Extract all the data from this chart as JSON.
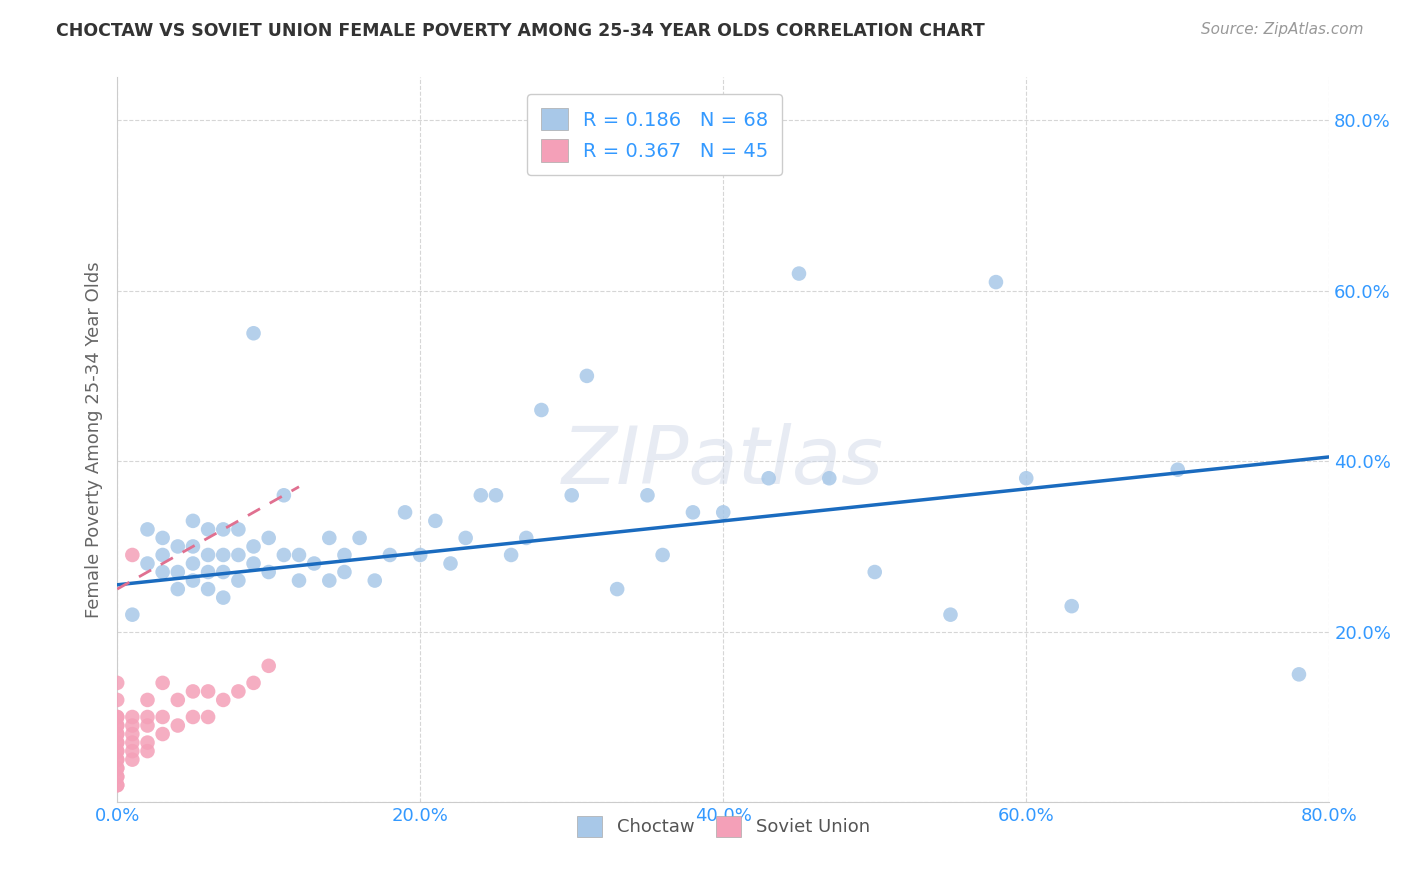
{
  "title": "CHOCTAW VS SOVIET UNION FEMALE POVERTY AMONG 25-34 YEAR OLDS CORRELATION CHART",
  "source": "Source: ZipAtlas.com",
  "xlabel_choctaw": "Choctaw",
  "xlabel_soviet": "Soviet Union",
  "ylabel": "Female Poverty Among 25-34 Year Olds",
  "choctaw_R": 0.186,
  "choctaw_N": 68,
  "soviet_R": 0.367,
  "soviet_N": 45,
  "choctaw_color": "#a8c8e8",
  "soviet_color": "#f4a0b8",
  "choctaw_line_color": "#1a6bbf",
  "soviet_line_color": "#e07090",
  "background_color": "#ffffff",
  "grid_color": "#cccccc",
  "choctaw_x": [
    0.01,
    0.02,
    0.02,
    0.03,
    0.03,
    0.03,
    0.04,
    0.04,
    0.04,
    0.05,
    0.05,
    0.05,
    0.05,
    0.06,
    0.06,
    0.06,
    0.06,
    0.07,
    0.07,
    0.07,
    0.07,
    0.08,
    0.08,
    0.08,
    0.09,
    0.09,
    0.09,
    0.1,
    0.1,
    0.11,
    0.11,
    0.12,
    0.12,
    0.13,
    0.14,
    0.14,
    0.15,
    0.15,
    0.16,
    0.17,
    0.18,
    0.19,
    0.2,
    0.21,
    0.22,
    0.23,
    0.24,
    0.25,
    0.26,
    0.27,
    0.28,
    0.3,
    0.31,
    0.33,
    0.35,
    0.36,
    0.38,
    0.4,
    0.43,
    0.45,
    0.47,
    0.5,
    0.55,
    0.58,
    0.6,
    0.63,
    0.7,
    0.78
  ],
  "choctaw_y": [
    0.22,
    0.28,
    0.32,
    0.27,
    0.29,
    0.31,
    0.25,
    0.27,
    0.3,
    0.26,
    0.28,
    0.3,
    0.33,
    0.25,
    0.27,
    0.29,
    0.32,
    0.24,
    0.27,
    0.29,
    0.32,
    0.26,
    0.29,
    0.32,
    0.28,
    0.3,
    0.55,
    0.27,
    0.31,
    0.29,
    0.36,
    0.26,
    0.29,
    0.28,
    0.26,
    0.31,
    0.27,
    0.29,
    0.31,
    0.26,
    0.29,
    0.34,
    0.29,
    0.33,
    0.28,
    0.31,
    0.36,
    0.36,
    0.29,
    0.31,
    0.46,
    0.36,
    0.5,
    0.25,
    0.36,
    0.29,
    0.34,
    0.34,
    0.38,
    0.62,
    0.38,
    0.27,
    0.22,
    0.61,
    0.38,
    0.23,
    0.39,
    0.15
  ],
  "soviet_x": [
    0.0,
    0.0,
    0.0,
    0.0,
    0.0,
    0.0,
    0.0,
    0.0,
    0.0,
    0.0,
    0.0,
    0.0,
    0.0,
    0.0,
    0.0,
    0.0,
    0.0,
    0.0,
    0.0,
    0.0,
    0.01,
    0.01,
    0.01,
    0.01,
    0.01,
    0.01,
    0.01,
    0.02,
    0.02,
    0.02,
    0.02,
    0.02,
    0.03,
    0.03,
    0.03,
    0.04,
    0.04,
    0.05,
    0.05,
    0.06,
    0.06,
    0.07,
    0.08,
    0.09,
    0.1
  ],
  "soviet_y": [
    0.02,
    0.02,
    0.03,
    0.03,
    0.04,
    0.04,
    0.05,
    0.05,
    0.06,
    0.06,
    0.07,
    0.07,
    0.08,
    0.08,
    0.09,
    0.09,
    0.1,
    0.1,
    0.12,
    0.14,
    0.05,
    0.06,
    0.07,
    0.08,
    0.09,
    0.1,
    0.29,
    0.06,
    0.07,
    0.09,
    0.1,
    0.12,
    0.08,
    0.1,
    0.14,
    0.09,
    0.12,
    0.1,
    0.13,
    0.1,
    0.13,
    0.12,
    0.13,
    0.14,
    0.16
  ],
  "xlim": [
    0.0,
    0.8
  ],
  "ylim": [
    0.0,
    0.85
  ],
  "xticks": [
    0.0,
    0.2,
    0.4,
    0.6,
    0.8
  ],
  "yticks": [
    0.0,
    0.2,
    0.4,
    0.6,
    0.8
  ],
  "xtick_labels": [
    "0.0%",
    "20.0%",
    "40.0%",
    "60.0%",
    "80.0%"
  ],
  "ytick_right_labels": [
    "",
    "20.0%",
    "40.0%",
    "60.0%",
    "80.0%"
  ],
  "choctaw_line_x": [
    0.0,
    0.8
  ],
  "choctaw_line_y": [
    0.255,
    0.405
  ],
  "soviet_line_x": [
    0.0,
    0.12
  ],
  "soviet_line_y": [
    0.25,
    0.37
  ]
}
